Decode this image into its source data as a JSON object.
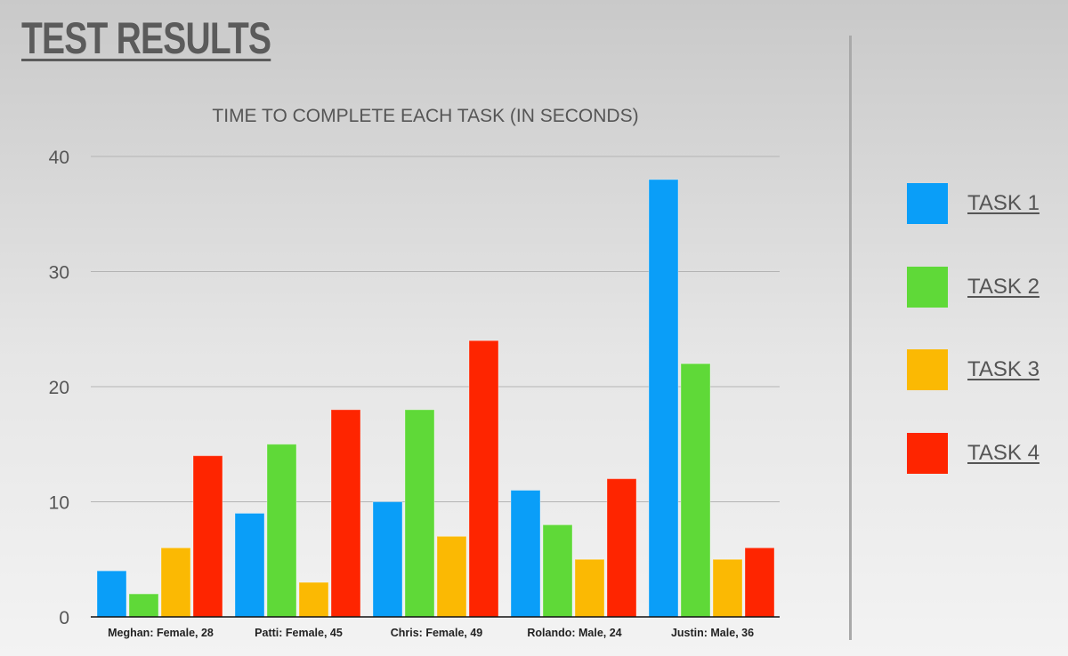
{
  "header": {
    "title": "TEST RESULTS"
  },
  "chart_data": {
    "type": "bar",
    "title": "TIME TO COMPLETE EACH TASK (IN SECONDS)",
    "xlabel": "",
    "ylabel": "",
    "categories": [
      "Meghan: Female, 28",
      "Patti: Female, 45",
      "Chris: Female, 49",
      "Rolando: Male, 24",
      "Justin: Male, 36"
    ],
    "series": [
      {
        "name": "TASK 1",
        "color": "#0a9ef8",
        "values": [
          4,
          9,
          10,
          11,
          38
        ]
      },
      {
        "name": "TASK 2",
        "color": "#5fd938",
        "values": [
          2,
          15,
          18,
          8,
          22
        ]
      },
      {
        "name": "TASK 3",
        "color": "#fbb903",
        "values": [
          6,
          3,
          7,
          5,
          5
        ]
      },
      {
        "name": "TASK 4",
        "color": "#fe2500",
        "values": [
          14,
          18,
          24,
          12,
          6
        ]
      }
    ],
    "ylim": [
      0,
      40
    ],
    "yticks": [
      0,
      10,
      20,
      30,
      40
    ],
    "grid": true,
    "legend_position": "right"
  }
}
